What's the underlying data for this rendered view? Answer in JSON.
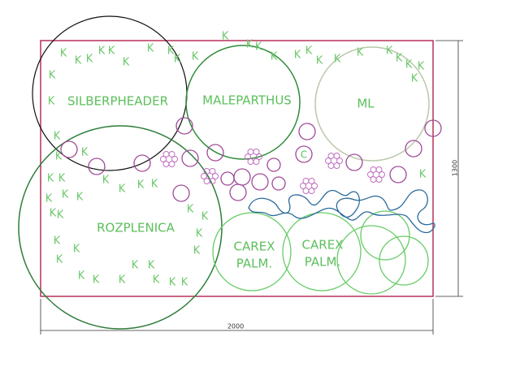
{
  "labels": {
    "silberpheader": "SILBERPHEADER",
    "maleparthus": "MALEPARTHUS",
    "ml": "ML",
    "rozplenica": "ROZPLENICA",
    "carex_1": [
      "CAREX",
      "PALM."
    ],
    "carex_2": [
      "CAREX",
      "PALM."
    ],
    "c": "C"
  },
  "k_marks": [
    "K",
    "K",
    "K",
    "K",
    "K",
    "K",
    "K",
    "K",
    "K",
    "K",
    "K",
    "K",
    "K",
    "K",
    "K",
    "K",
    "K",
    "K",
    "K",
    "K",
    "K",
    "K",
    "K",
    "K",
    "K",
    "K",
    "K",
    "K",
    "K",
    "K",
    "K",
    "K",
    "K",
    "K",
    "K",
    "K",
    "K",
    "K",
    "K",
    "K",
    "K",
    "K",
    "K",
    "K",
    "K",
    "K",
    "K",
    "K",
    "K",
    "K",
    "K",
    "K",
    "K",
    "K",
    "K",
    "K"
  ],
  "dimensions": {
    "width": "2000",
    "height": "1300"
  }
}
